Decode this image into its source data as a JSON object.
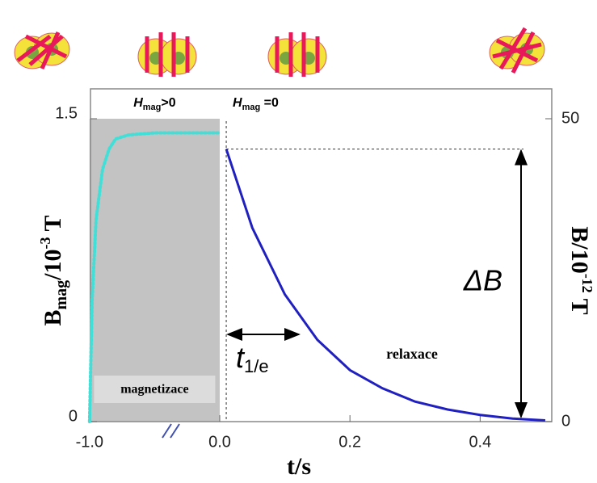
{
  "chart_data": {
    "type": "line",
    "x_label": "t/s",
    "y_label_parts": [
      "B",
      "mag",
      "/10",
      "-3",
      " T"
    ],
    "y2_label_parts": [
      "B/10",
      "-12",
      " T"
    ],
    "xlim": [
      -1.0,
      0.51
    ],
    "xticks": [
      {
        "value": -1.0,
        "label": "-1.0"
      },
      {
        "value": 0,
        "label": "0.0"
      },
      {
        "value": 0.2,
        "label": "0.2"
      },
      {
        "value": 0.4,
        "label": "0.4"
      }
    ],
    "ylim": [
      0,
      1.5
    ],
    "yticks": [
      0,
      1.5
    ],
    "y2lim": [
      0,
      50
    ],
    "y2ticks": [
      0,
      50
    ],
    "regions": [
      {
        "x": [
          -1.0,
          0.0
        ],
        "color": "#c3c3c3",
        "label": "magnetizace",
        "header_parts": [
          "H",
          "mag",
          ">0"
        ]
      }
    ],
    "header2_parts": [
      "H",
      "mag",
      " =0"
    ],
    "series": [
      {
        "color": "#40e0d8",
        "style": "dotted",
        "x": [
          -1.0,
          -0.98,
          -0.95,
          -0.9,
          -0.85,
          -0.8,
          -0.7,
          -0.5,
          0.0
        ],
        "values": [
          0,
          0.6,
          1.0,
          1.25,
          1.35,
          1.4,
          1.42,
          1.43,
          1.43
        ]
      },
      {
        "color": "#2020c0",
        "style": "solid",
        "axis": "y2",
        "x": [
          0.01,
          0.05,
          0.1,
          0.15,
          0.2,
          0.25,
          0.3,
          0.35,
          0.4,
          0.45,
          0.5
        ],
        "values": [
          45,
          32,
          21,
          13.5,
          8.5,
          5.5,
          3.3,
          2,
          1.1,
          0.5,
          0.2
        ]
      }
    ],
    "delta_label": "ΔB",
    "tau_parts": [
      "t",
      "1/e"
    ],
    "relax_label": "relaxace"
  }
}
